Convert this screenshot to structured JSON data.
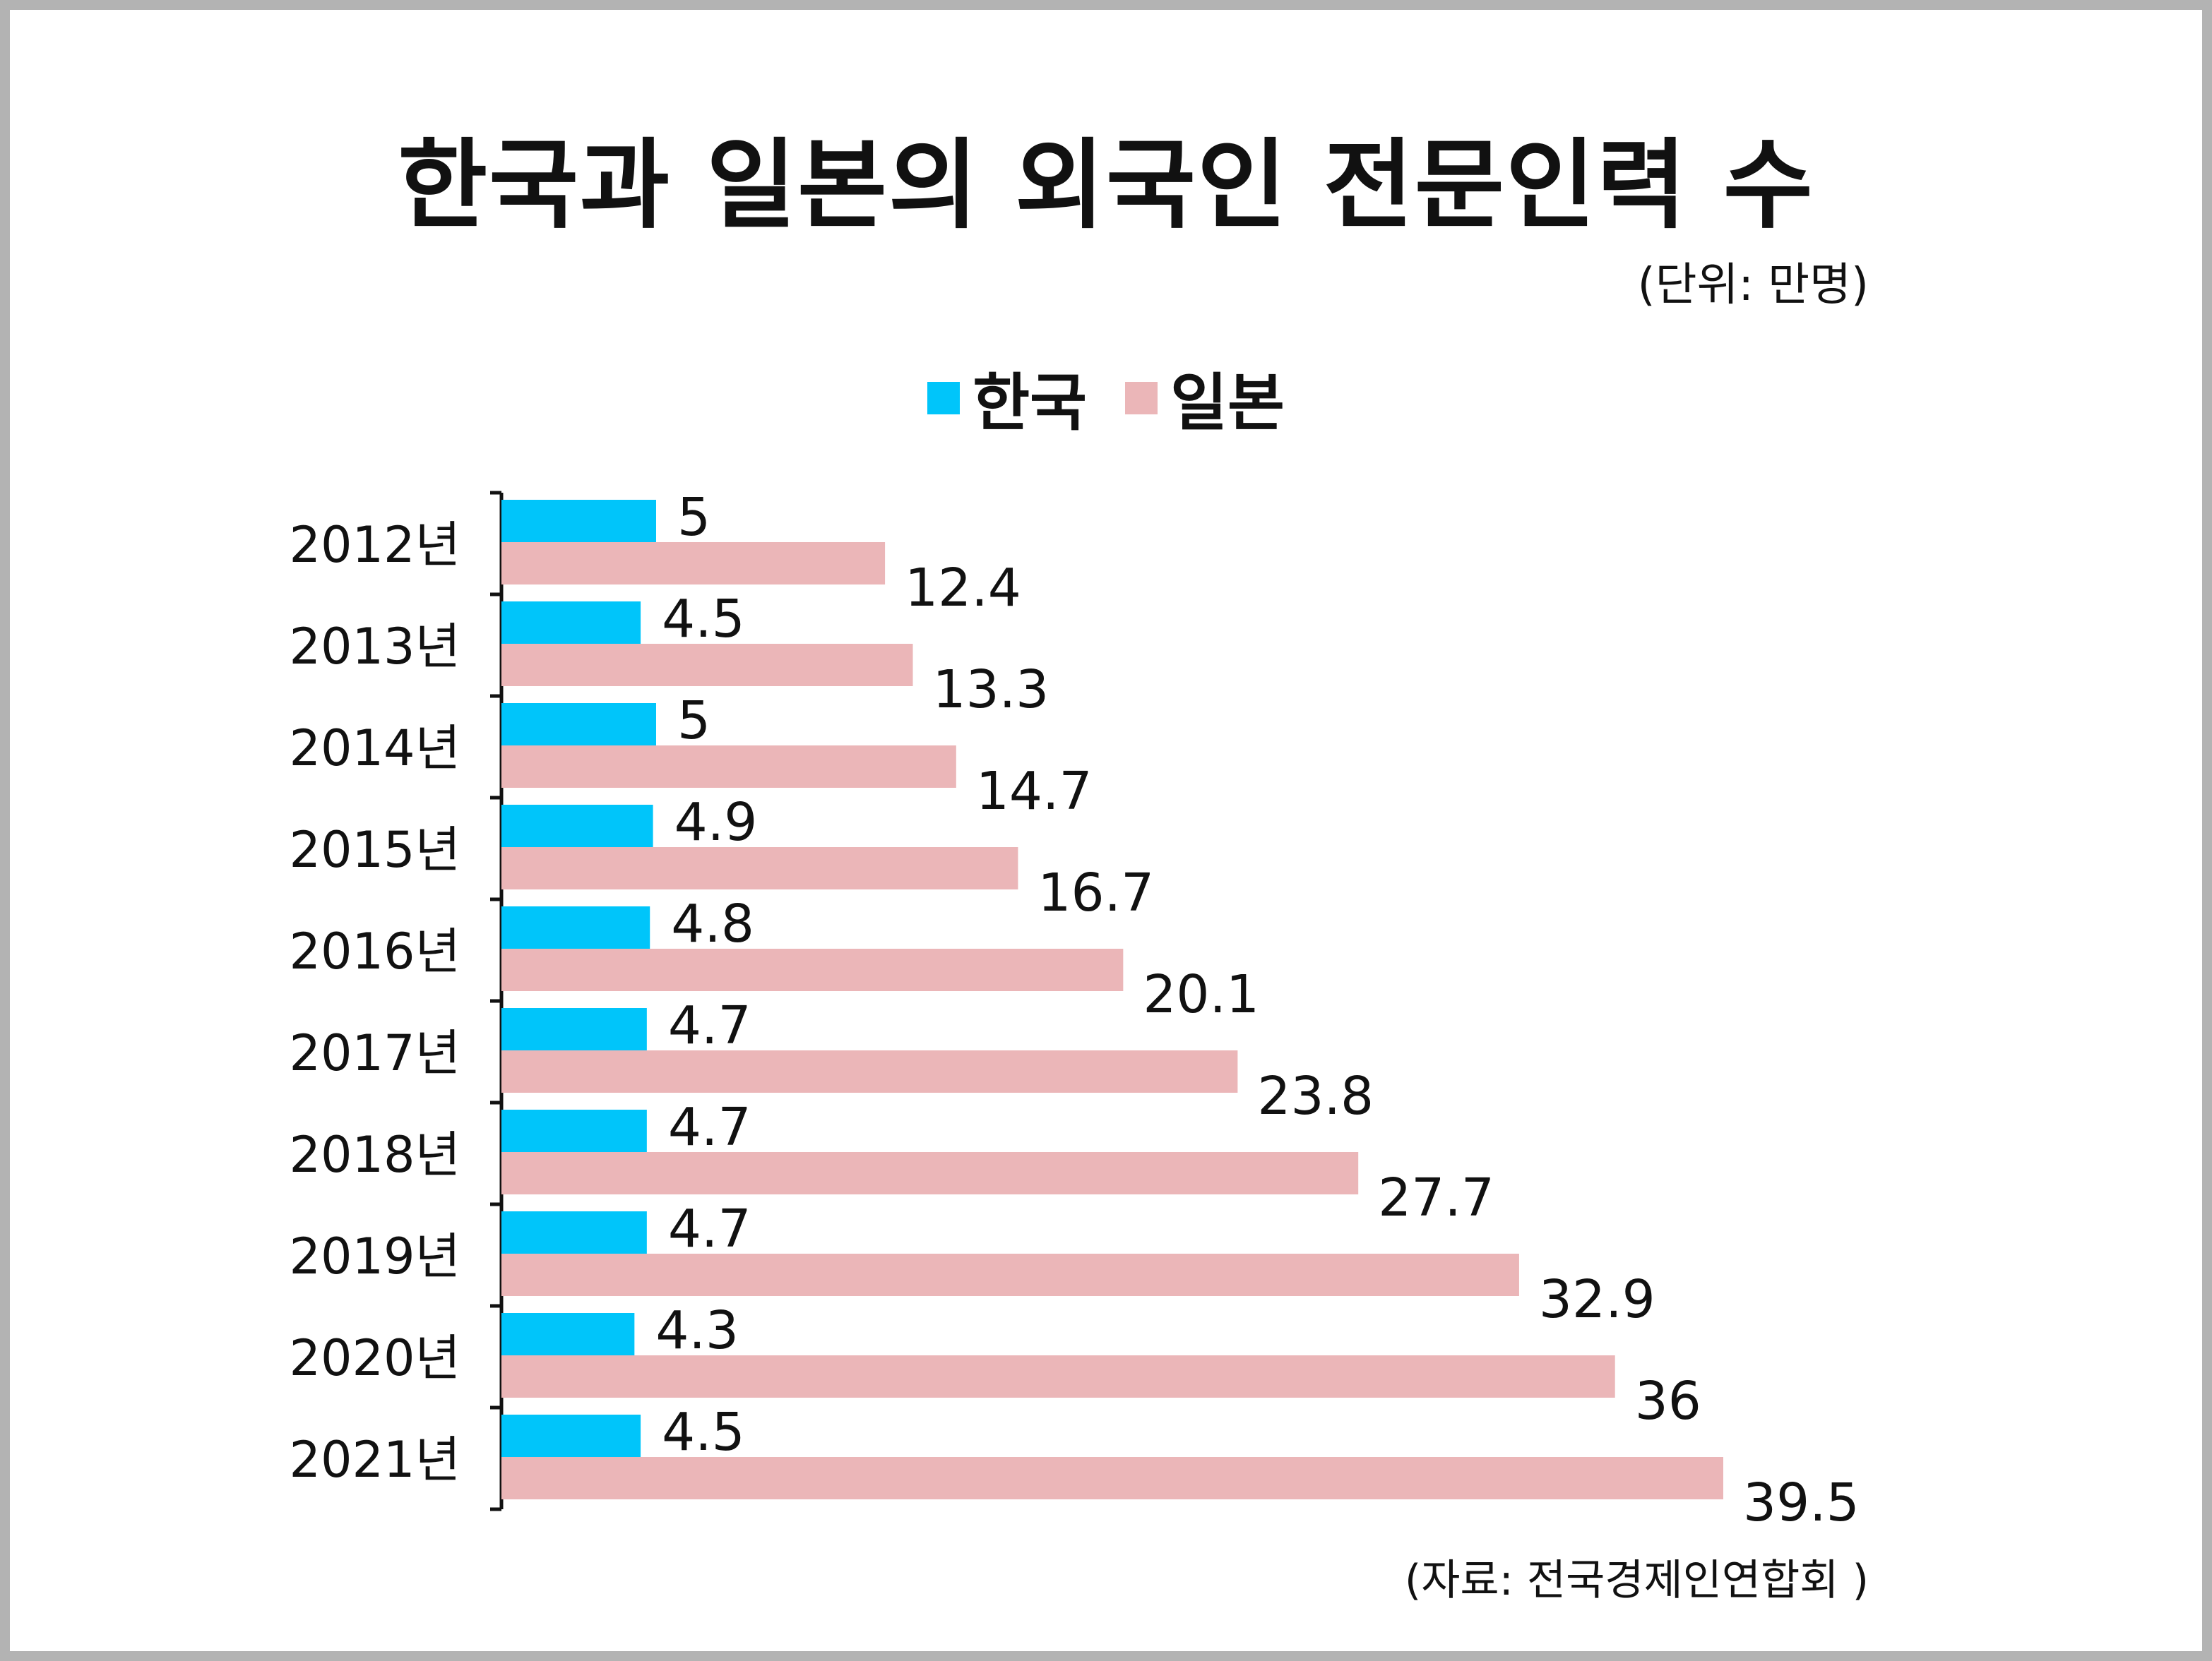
{
  "title": "한국과 일본의 외국인 전문인력 수",
  "unit_note": "(단위: 만명)",
  "source_note": "(자료: 전국경제인연합회 )",
  "colors": {
    "korea": "#00C5FA",
    "japan": "#EBB6B8",
    "axis": "#111111",
    "frame": "#B3B3B3"
  },
  "chart_data": {
    "type": "bar",
    "orientation": "horizontal",
    "categories": [
      "2012년",
      "2013년",
      "2014년",
      "2015년",
      "2016년",
      "2017년",
      "2018년",
      "2019년",
      "2020년",
      "2021년"
    ],
    "series": [
      {
        "name": "한국",
        "values": [
          5,
          4.5,
          5,
          4.9,
          4.8,
          4.7,
          4.7,
          4.7,
          4.3,
          4.5
        ]
      },
      {
        "name": "일본",
        "values": [
          12.4,
          13.3,
          14.7,
          16.7,
          20.1,
          23.8,
          27.7,
          32.9,
          36,
          39.5
        ]
      }
    ],
    "xlim": [
      0,
      39.5
    ],
    "data_labels": true,
    "legend_position": "top-center",
    "grid": false
  }
}
